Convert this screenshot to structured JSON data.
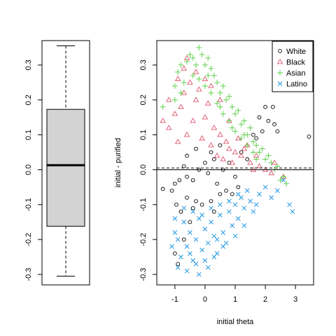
{
  "chart_data": [
    {
      "type": "box",
      "title": "",
      "ylabel": "",
      "ylim": [
        -0.33,
        0.37
      ],
      "y_ticks": [
        -0.3,
        -0.2,
        -0.1,
        0.0,
        0.1,
        0.2,
        0.3
      ],
      "y_tick_labels": [
        "-0.3",
        "-0.2",
        "-0.1",
        "0.0",
        "0.1",
        "0.2",
        "0.3"
      ],
      "stats": {
        "min": -0.305,
        "q1": -0.162,
        "median": 0.013,
        "q3": 0.173,
        "max": 0.355
      },
      "box_fill": "#d3d3d3"
    },
    {
      "type": "scatter",
      "title": "",
      "xlabel": "initial theta",
      "ylabel": "initial - purified",
      "xlim": [
        -1.6,
        3.6
      ],
      "ylim": [
        -0.33,
        0.37
      ],
      "x_ticks": [
        -1,
        0,
        1,
        2,
        3
      ],
      "x_tick_labels": [
        "-1",
        "0",
        "1",
        "2",
        "3"
      ],
      "y_ticks": [
        -0.3,
        -0.2,
        -0.1,
        0.0,
        0.1,
        0.2,
        0.3
      ],
      "y_tick_labels": [
        "-0.3",
        "-0.2",
        "-0.1",
        "0.0",
        "0.1",
        "0.2",
        "0.3"
      ],
      "hlines": [
        {
          "y": 0.0,
          "style": "solid"
        },
        {
          "y": 0.005,
          "style": "dashed"
        }
      ],
      "legend_position": "top-right",
      "series": [
        {
          "name": "White",
          "marker": "circle",
          "color": "#000000",
          "points": [
            [
              -1.4,
              -0.055
            ],
            [
              -1.1,
              -0.06
            ],
            [
              -1.0,
              -0.04
            ],
            [
              -0.85,
              -0.03
            ],
            [
              -0.7,
              0.01
            ],
            [
              -0.6,
              -0.02
            ],
            [
              -0.4,
              -0.03
            ],
            [
              -0.2,
              0.0
            ],
            [
              0.0,
              0.02
            ],
            [
              0.1,
              -0.01
            ],
            [
              0.3,
              0.03
            ],
            [
              0.4,
              -0.04
            ],
            [
              0.6,
              0.0
            ],
            [
              0.8,
              0.02
            ],
            [
              1.0,
              -0.02
            ],
            [
              1.2,
              0.05
            ],
            [
              1.4,
              0.03
            ],
            [
              1.6,
              0.1
            ],
            [
              1.8,
              0.15
            ],
            [
              2.0,
              0.18
            ],
            [
              2.1,
              0.14
            ],
            [
              2.3,
              0.13
            ],
            [
              2.4,
              0.11
            ],
            [
              3.45,
              0.095
            ],
            [
              -0.95,
              -0.1
            ],
            [
              -0.8,
              -0.12
            ],
            [
              -0.6,
              -0.08
            ],
            [
              -0.4,
              -0.11
            ],
            [
              -0.3,
              -0.09
            ],
            [
              -0.1,
              -0.1
            ],
            [
              0.2,
              -0.09
            ],
            [
              0.5,
              -0.07
            ],
            [
              0.7,
              -0.06
            ],
            [
              -1.0,
              -0.24
            ],
            [
              -0.9,
              -0.27
            ],
            [
              -0.7,
              -0.2
            ],
            [
              -0.5,
              -0.15
            ],
            [
              0.3,
              -0.12
            ],
            [
              0.9,
              -0.07
            ],
            [
              1.1,
              -0.05
            ],
            [
              -0.3,
              0.06
            ],
            [
              0.2,
              0.05
            ],
            [
              0.5,
              0.07
            ],
            [
              -0.6,
              0.04
            ],
            [
              1.7,
              0.09
            ],
            [
              2.25,
              0.18
            ],
            [
              1.9,
              0.11
            ]
          ]
        },
        {
          "name": "Black",
          "marker": "triangle",
          "color": "#df536b",
          "points": [
            [
              -1.4,
              0.14
            ],
            [
              -1.2,
              0.12
            ],
            [
              -1.0,
              0.16
            ],
            [
              -0.8,
              0.18
            ],
            [
              -0.7,
              0.22
            ],
            [
              -0.5,
              0.25
            ],
            [
              -0.3,
              0.2
            ],
            [
              -0.2,
              0.23
            ],
            [
              0.0,
              0.15
            ],
            [
              0.1,
              0.19
            ],
            [
              0.3,
              0.12
            ],
            [
              0.5,
              0.1
            ],
            [
              0.7,
              0.08
            ],
            [
              0.8,
              0.06
            ],
            [
              1.0,
              0.05
            ],
            [
              1.2,
              0.04
            ],
            [
              1.3,
              0.06
            ],
            [
              1.5,
              0.02
            ],
            [
              1.6,
              0.0
            ],
            [
              1.8,
              0.01
            ],
            [
              2.0,
              0.0
            ],
            [
              2.2,
              -0.01
            ],
            [
              2.3,
              0.02
            ],
            [
              2.6,
              -0.02
            ],
            [
              -0.9,
              0.08
            ],
            [
              -0.6,
              0.1
            ],
            [
              -0.4,
              0.14
            ],
            [
              -0.1,
              0.09
            ],
            [
              0.2,
              0.07
            ],
            [
              0.4,
              0.04
            ],
            [
              0.6,
              0.03
            ],
            [
              0.9,
              0.02
            ],
            [
              -1.2,
              0.2
            ],
            [
              -0.9,
              0.26
            ],
            [
              -0.7,
              0.29
            ],
            [
              -0.6,
              0.32
            ],
            [
              -0.3,
              0.28
            ],
            [
              0.0,
              0.26
            ],
            [
              0.2,
              0.24
            ],
            [
              0.5,
              0.2
            ],
            [
              0.8,
              0.14
            ],
            [
              1.1,
              0.09
            ],
            [
              1.4,
              0.07
            ],
            [
              1.7,
              0.04
            ]
          ]
        },
        {
          "name": "Asian",
          "marker": "plus",
          "color": "#61d04f",
          "points": [
            [
              -1.4,
              0.18
            ],
            [
              -1.0,
              0.24
            ],
            [
              -0.9,
              0.28
            ],
            [
              -0.8,
              0.3
            ],
            [
              -0.6,
              0.31
            ],
            [
              -0.5,
              0.33
            ],
            [
              -0.4,
              0.32
            ],
            [
              -0.2,
              0.35
            ],
            [
              -0.1,
              0.33
            ],
            [
              0.0,
              0.3
            ],
            [
              0.1,
              0.32
            ],
            [
              0.2,
              0.29
            ],
            [
              0.3,
              0.27
            ],
            [
              0.4,
              0.25
            ],
            [
              0.5,
              0.22
            ],
            [
              0.6,
              0.24
            ],
            [
              0.7,
              0.2
            ],
            [
              0.8,
              0.21
            ],
            [
              0.9,
              0.18
            ],
            [
              1.0,
              0.16
            ],
            [
              1.1,
              0.17
            ],
            [
              1.2,
              0.13
            ],
            [
              1.3,
              0.14
            ],
            [
              1.4,
              0.1
            ],
            [
              1.5,
              0.12
            ],
            [
              1.6,
              0.08
            ],
            [
              1.7,
              0.07
            ],
            [
              1.8,
              0.05
            ],
            [
              1.9,
              0.06
            ],
            [
              2.0,
              0.03
            ],
            [
              2.1,
              0.04
            ],
            [
              2.2,
              0.02
            ],
            [
              2.4,
              0.01
            ],
            [
              2.6,
              -0.02
            ],
            [
              2.7,
              -0.04
            ],
            [
              2.5,
              -0.03
            ],
            [
              -0.7,
              0.25
            ],
            [
              -0.4,
              0.27
            ],
            [
              -0.2,
              0.26
            ],
            [
              0.0,
              0.24
            ],
            [
              0.2,
              0.22
            ],
            [
              0.4,
              0.19
            ],
            [
              0.6,
              0.16
            ],
            [
              0.8,
              0.14
            ],
            [
              1.0,
              0.11
            ],
            [
              1.2,
              0.09
            ],
            [
              1.4,
              0.07
            ],
            [
              1.6,
              0.05
            ],
            [
              -1.0,
              0.2
            ],
            [
              -0.8,
              0.22
            ],
            [
              -0.3,
              0.3
            ],
            [
              0.1,
              0.27
            ],
            [
              0.5,
              0.18
            ],
            [
              0.9,
              0.12
            ],
            [
              1.3,
              0.1
            ],
            [
              1.7,
              0.03
            ],
            [
              2.3,
              0.0
            ]
          ]
        },
        {
          "name": "Latino",
          "marker": "x",
          "color": "#2297e6",
          "points": [
            [
              -1.1,
              -0.22
            ],
            [
              -1.0,
              -0.18
            ],
            [
              -0.9,
              -0.2
            ],
            [
              -0.8,
              -0.25
            ],
            [
              -0.7,
              -0.15
            ],
            [
              -0.6,
              -0.22
            ],
            [
              -0.5,
              -0.18
            ],
            [
              -0.4,
              -0.26
            ],
            [
              -0.3,
              -0.2
            ],
            [
              -0.2,
              -0.14
            ],
            [
              -0.1,
              -0.23
            ],
            [
              0.0,
              -0.17
            ],
            [
              0.1,
              -0.21
            ],
            [
              0.2,
              -0.15
            ],
            [
              0.3,
              -0.19
            ],
            [
              0.4,
              -0.24
            ],
            [
              0.5,
              -0.13
            ],
            [
              0.6,
              -0.18
            ],
            [
              0.7,
              -0.21
            ],
            [
              0.8,
              -0.12
            ],
            [
              0.9,
              -0.16
            ],
            [
              1.0,
              -0.1
            ],
            [
              1.1,
              -0.14
            ],
            [
              1.2,
              -0.08
            ],
            [
              1.3,
              -0.11
            ],
            [
              1.4,
              -0.06
            ],
            [
              1.5,
              -0.09
            ],
            [
              1.6,
              -0.12
            ],
            [
              1.8,
              -0.07
            ],
            [
              2.0,
              -0.05
            ],
            [
              2.2,
              -0.08
            ],
            [
              2.4,
              -0.06
            ],
            [
              2.6,
              -0.03
            ],
            [
              -0.9,
              -0.28
            ],
            [
              -0.6,
              -0.29
            ],
            [
              -0.3,
              -0.27
            ],
            [
              0.0,
              -0.26
            ],
            [
              0.3,
              -0.25
            ],
            [
              -1.0,
              -0.14
            ],
            [
              -0.7,
              -0.11
            ],
            [
              -0.4,
              -0.12
            ],
            [
              -0.1,
              -0.13
            ],
            [
              0.2,
              -0.11
            ],
            [
              0.5,
              -0.1
            ],
            [
              0.8,
              -0.09
            ],
            [
              1.1,
              -0.07
            ],
            [
              -0.2,
              -0.3
            ],
            [
              0.1,
              -0.28
            ],
            [
              0.6,
              -0.22
            ],
            [
              1.0,
              -0.19
            ],
            [
              1.3,
              -0.16
            ],
            [
              1.7,
              -0.1
            ],
            [
              2.8,
              -0.1
            ],
            [
              2.9,
              -0.12
            ],
            [
              -0.5,
              -0.24
            ],
            [
              0.4,
              -0.2
            ]
          ]
        }
      ]
    }
  ]
}
